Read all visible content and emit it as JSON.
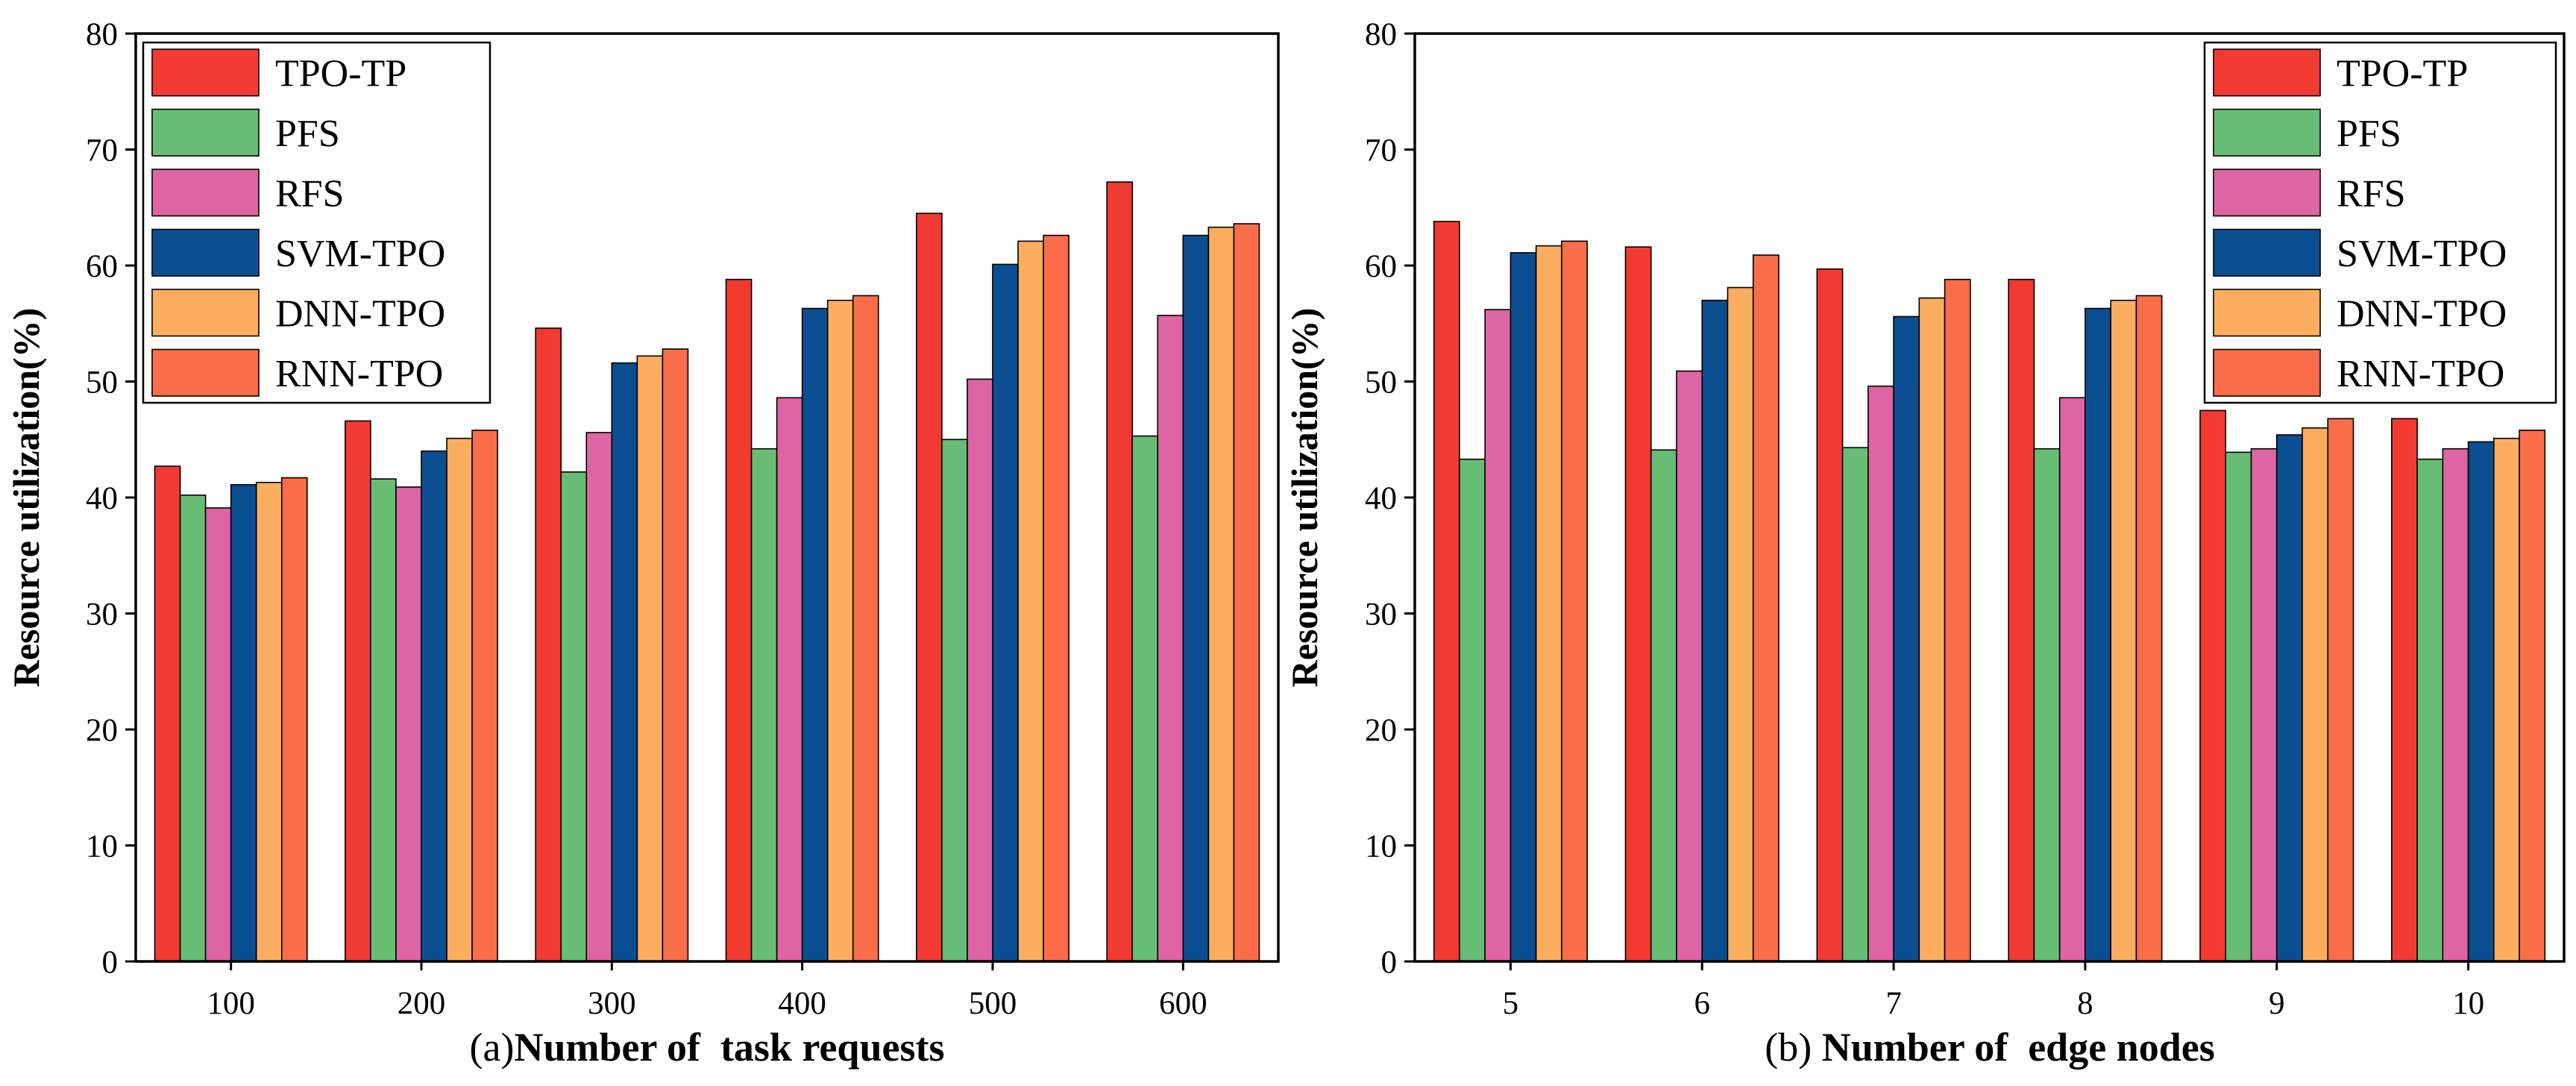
{
  "colors": {
    "series": [
      "#f23a32",
      "#68bd74",
      "#dd65a3",
      "#0b4e92",
      "#fcae5e",
      "#fb6c48"
    ],
    "axis": "#000000",
    "background": "#ffffff"
  },
  "chart_data": [
    {
      "type": "bar",
      "panel": "a",
      "caption_prefix": "(a)",
      "xlabel": "Number of  task requests",
      "ylabel": "Resource utilization(%)",
      "ylim": [
        0,
        80
      ],
      "yticks": [
        0,
        10,
        20,
        30,
        40,
        50,
        60,
        70,
        80
      ],
      "legend_position": "top-left",
      "categories": [
        "100",
        "200",
        "300",
        "400",
        "500",
        "600"
      ],
      "series": [
        {
          "name": "TPO-TP",
          "values": [
            42.7,
            46.6,
            54.6,
            58.8,
            64.5,
            67.2
          ]
        },
        {
          "name": "PFS",
          "values": [
            40.2,
            41.6,
            42.2,
            44.2,
            45.0,
            45.3
          ]
        },
        {
          "name": "RFS",
          "values": [
            39.1,
            40.9,
            45.6,
            48.6,
            50.2,
            55.7
          ]
        },
        {
          "name": "SVM-TPO",
          "values": [
            41.1,
            44.0,
            51.6,
            56.3,
            60.1,
            62.6
          ]
        },
        {
          "name": "DNN-TPO",
          "values": [
            41.3,
            45.1,
            52.2,
            57.0,
            62.1,
            63.3
          ]
        },
        {
          "name": "RNN-TPO",
          "values": [
            41.7,
            45.8,
            52.8,
            57.4,
            62.6,
            63.6
          ]
        }
      ]
    },
    {
      "type": "bar",
      "panel": "b",
      "caption_prefix": "(b)",
      "xlabel": " Number of  edge nodes",
      "ylabel": "Resource utilization(%)",
      "ylim": [
        0,
        80
      ],
      "yticks": [
        0,
        10,
        20,
        30,
        40,
        50,
        60,
        70,
        80
      ],
      "legend_position": "top-right",
      "categories": [
        "5",
        "6",
        "7",
        "8",
        "9",
        "10"
      ],
      "series": [
        {
          "name": "TPO-TP",
          "values": [
            63.8,
            61.6,
            59.7,
            58.8,
            47.5,
            46.8
          ]
        },
        {
          "name": "PFS",
          "values": [
            43.3,
            44.1,
            44.3,
            44.2,
            43.9,
            43.3
          ]
        },
        {
          "name": "RFS",
          "values": [
            56.2,
            50.9,
            49.6,
            48.6,
            44.2,
            44.2
          ]
        },
        {
          "name": "SVM-TPO",
          "values": [
            61.1,
            57.0,
            55.6,
            56.3,
            45.4,
            44.8
          ]
        },
        {
          "name": "DNN-TPO",
          "values": [
            61.7,
            58.1,
            57.2,
            57.0,
            46.0,
            45.1
          ]
        },
        {
          "name": "RNN-TPO",
          "values": [
            62.1,
            60.9,
            58.8,
            57.4,
            46.8,
            45.8
          ]
        }
      ]
    }
  ]
}
